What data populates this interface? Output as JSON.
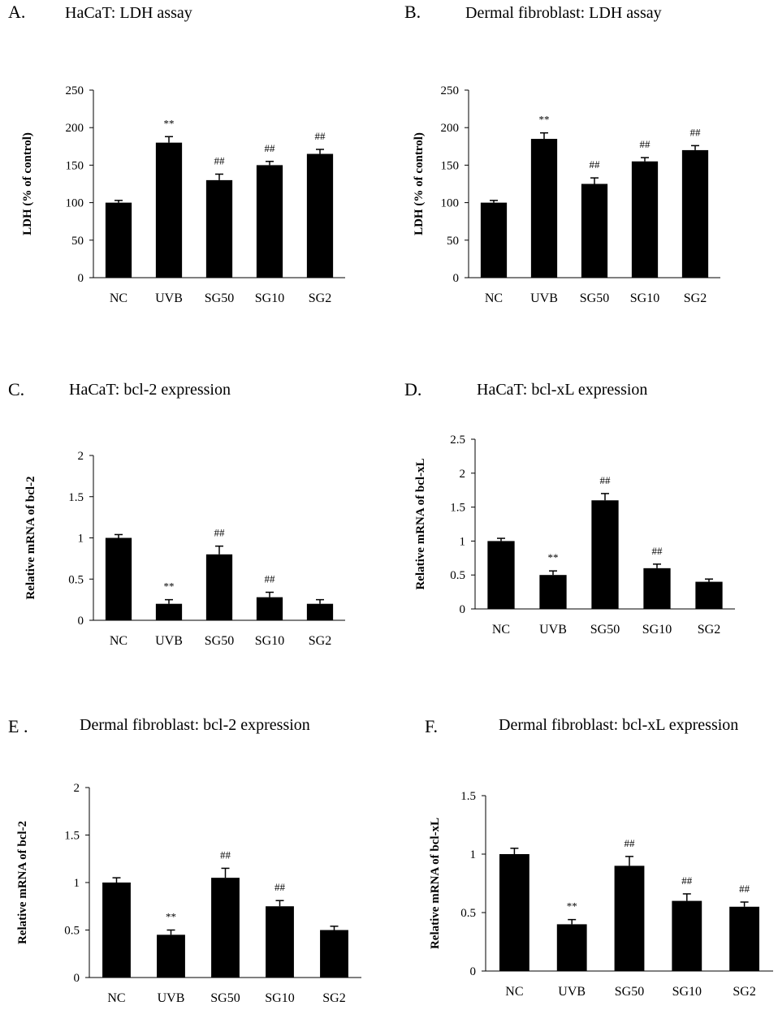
{
  "colors": {
    "bar": "#000000",
    "axis": "#000000",
    "background": "#ffffff"
  },
  "chart_data": [
    {
      "panel": "A.",
      "type": "bar",
      "title": "HaCaT: LDH assay",
      "xlabel": "",
      "ylabel": "LDH (% of control)",
      "ylim": [
        0,
        250
      ],
      "yticks": [
        0,
        50,
        100,
        150,
        200,
        250
      ],
      "ytick_labels": [
        "0",
        "50",
        "100",
        "150",
        "200",
        "250"
      ],
      "categories": [
        "NC",
        "UVB",
        "SG50",
        "SG10",
        "SG2"
      ],
      "values": [
        100,
        180,
        130,
        150,
        165
      ],
      "errors": [
        3,
        8,
        8,
        5,
        6
      ],
      "annotations": [
        "",
        "**",
        "##",
        "##",
        "##"
      ],
      "grid": false
    },
    {
      "panel": "B.",
      "type": "bar",
      "title": "Dermal fibroblast: LDH assay",
      "xlabel": "",
      "ylabel": "LDH (% of control)",
      "ylim": [
        0,
        250
      ],
      "yticks": [
        0,
        50,
        100,
        150,
        200,
        250
      ],
      "ytick_labels": [
        "0",
        "50",
        "100",
        "150",
        "200",
        "250"
      ],
      "categories": [
        "NC",
        "UVB",
        "SG50",
        "SG10",
        "SG2"
      ],
      "values": [
        100,
        185,
        125,
        155,
        170
      ],
      "errors": [
        3,
        8,
        8,
        5,
        6
      ],
      "annotations": [
        "",
        "**",
        "##",
        "##",
        "##"
      ],
      "grid": false
    },
    {
      "panel": "C.",
      "type": "bar",
      "title": "HaCaT: bcl-2 expression",
      "xlabel": "",
      "ylabel": "Relative mRNA of bcl-2",
      "ylim": [
        0,
        2
      ],
      "yticks": [
        0,
        0.5,
        1,
        1.5,
        2
      ],
      "ytick_labels": [
        "0",
        "0.5",
        "1",
        "1.5",
        "2"
      ],
      "categories": [
        "NC",
        "UVB",
        "SG50",
        "SG10",
        "SG2"
      ],
      "values": [
        1.0,
        0.2,
        0.8,
        0.28,
        0.2
      ],
      "errors": [
        0.04,
        0.05,
        0.1,
        0.06,
        0.05
      ],
      "annotations": [
        "",
        "**",
        "##",
        "##",
        ""
      ],
      "grid": false
    },
    {
      "panel": "D.",
      "type": "bar",
      "title": "HaCaT: bcl-xL expression",
      "xlabel": "",
      "ylabel": "Relative mRNA of bcl-xL",
      "ylim": [
        0,
        2.5
      ],
      "yticks": [
        0,
        0.5,
        1,
        1.5,
        2,
        2.5
      ],
      "ytick_labels": [
        "0",
        "0.5",
        "1",
        "1.5",
        "2",
        "2.5"
      ],
      "categories": [
        "NC",
        "UVB",
        "SG50",
        "SG10",
        "SG2"
      ],
      "values": [
        1.0,
        0.5,
        1.6,
        0.6,
        0.4
      ],
      "errors": [
        0.04,
        0.06,
        0.1,
        0.06,
        0.04
      ],
      "annotations": [
        "",
        "**",
        "##",
        "##",
        ""
      ],
      "grid": false
    },
    {
      "panel": "E .",
      "type": "bar",
      "title": "Dermal fibroblast: bcl-2 expression",
      "xlabel": "",
      "ylabel": "Relative mRNA of bcl-2",
      "ylim": [
        0,
        2
      ],
      "yticks": [
        0,
        0.5,
        1,
        1.5,
        2
      ],
      "ytick_labels": [
        "0",
        "0.5",
        "1",
        "1.5",
        "2"
      ],
      "categories": [
        "NC",
        "UVB",
        "SG50",
        "SG10",
        "SG2"
      ],
      "values": [
        1.0,
        0.45,
        1.05,
        0.75,
        0.5
      ],
      "errors": [
        0.05,
        0.05,
        0.1,
        0.06,
        0.04
      ],
      "annotations": [
        "",
        "**",
        "##",
        "##",
        ""
      ],
      "grid": false
    },
    {
      "panel": "F.",
      "type": "bar",
      "title": "Dermal fibroblast: bcl-xL expression",
      "xlabel": "",
      "ylabel": "Relative mRNA of bcl-xL",
      "ylim": [
        0,
        1.5
      ],
      "yticks": [
        0,
        0.5,
        1,
        1.5
      ],
      "ytick_labels": [
        "0",
        "0.5",
        "1",
        "1.5"
      ],
      "categories": [
        "NC",
        "UVB",
        "SG50",
        "SG10",
        "SG2"
      ],
      "values": [
        1.0,
        0.4,
        0.9,
        0.6,
        0.55
      ],
      "errors": [
        0.05,
        0.04,
        0.08,
        0.06,
        0.04
      ],
      "annotations": [
        "",
        "**",
        "##",
        "##",
        "##"
      ],
      "grid": false
    }
  ]
}
